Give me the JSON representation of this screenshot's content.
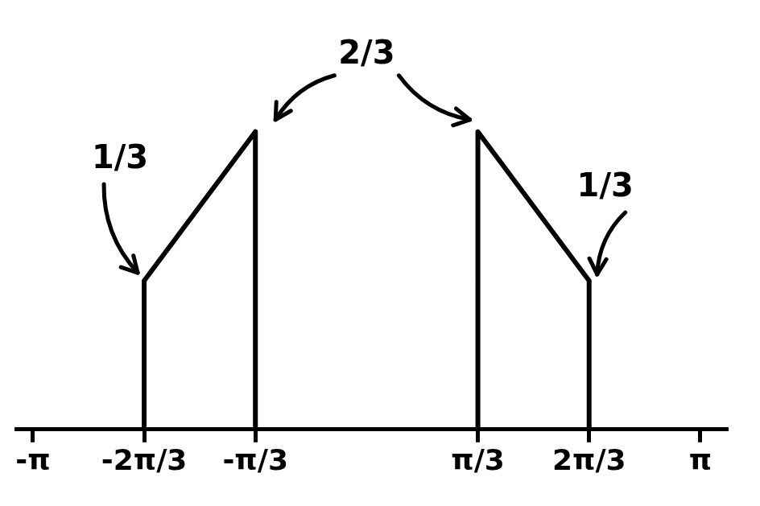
{
  "chart_data": {
    "type": "line",
    "x": [
      -2.0944,
      -2.0944,
      -1.0472,
      -1.0472,
      0,
      1.0472,
      1.0472,
      2.0944,
      2.0944
    ],
    "values": [
      0,
      0.333,
      0.667,
      0,
      null,
      0,
      0.667,
      0.333,
      0
    ],
    "color": "#000000",
    "xlim": [
      -3.3,
      3.4
    ],
    "xticks": [
      {
        "value": -3.1416,
        "label": "-π"
      },
      {
        "value": -2.0944,
        "label": "-2π/3"
      },
      {
        "value": -1.0472,
        "label": "-π/3"
      },
      {
        "value": 1.0472,
        "label": "π/3"
      },
      {
        "value": 2.0944,
        "label": "2π/3"
      },
      {
        "value": 3.1416,
        "label": "π"
      }
    ],
    "ylim": [
      0,
      0.8
    ],
    "tick_labels": "x",
    "grid": false,
    "annotations": [
      {
        "text": "1/3",
        "points": [
          [
            -2.0944,
            0.333
          ]
        ]
      },
      {
        "text": "2/3",
        "points": [
          [
            -1.0472,
            0.667
          ],
          [
            1.0472,
            0.667
          ]
        ]
      },
      {
        "text": "1/3",
        "points": [
          [
            2.0944,
            0.333
          ]
        ]
      }
    ]
  }
}
